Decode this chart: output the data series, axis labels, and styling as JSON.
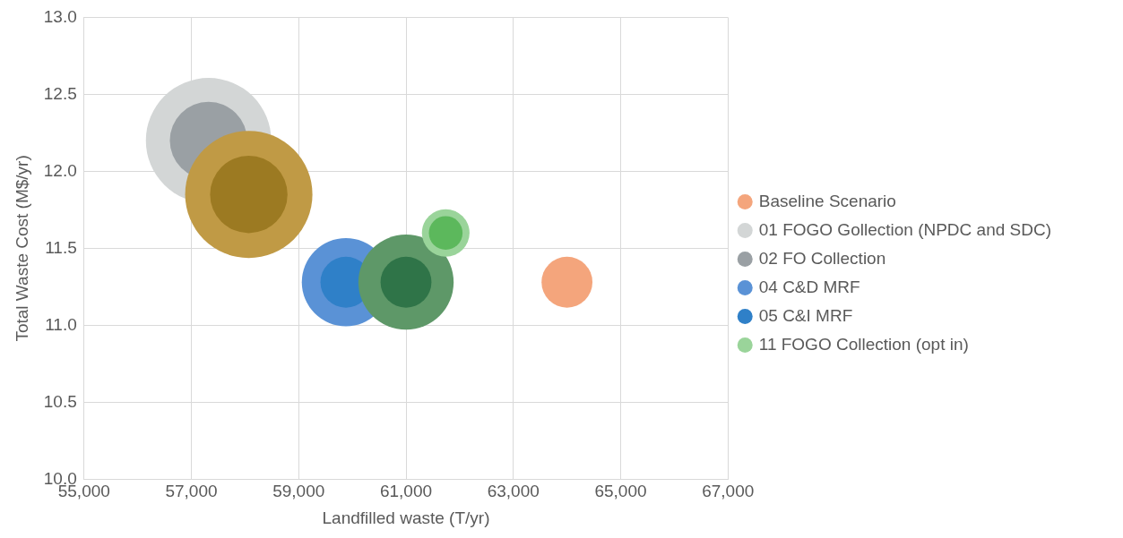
{
  "chart_data": {
    "type": "bubble",
    "xlabel": "Landfilled waste (T/yr)",
    "ylabel": "Total Waste Cost (M$/yr)",
    "xlim": [
      55000,
      67000
    ],
    "xticks": [
      {
        "value": 55000,
        "label": "55,000"
      },
      {
        "value": 57000,
        "label": "57,000"
      },
      {
        "value": 59000,
        "label": "59,000"
      },
      {
        "value": 61000,
        "label": "61,000"
      },
      {
        "value": 63000,
        "label": "63,000"
      },
      {
        "value": 65000,
        "label": "65,000"
      },
      {
        "value": 67000,
        "label": "67,000"
      }
    ],
    "ylim": [
      10.0,
      13.0
    ],
    "yticks": [
      {
        "value": 10,
        "label": "10.0"
      },
      {
        "value": 10.5,
        "label": "10.5"
      },
      {
        "value": 11,
        "label": "11.0"
      },
      {
        "value": 11.5,
        "label": "11.5"
      },
      {
        "value": 12,
        "label": "12.0"
      },
      {
        "value": 12.5,
        "label": "12.5"
      },
      {
        "value": 13,
        "label": "13.0"
      }
    ],
    "grid": true,
    "legend": "right",
    "series": [
      {
        "name": "Baseline Scenario",
        "color": "#f4a57c",
        "x": [
          64000
        ],
        "values": [
          11.28
        ],
        "sizes": [
          0.16
        ]
      },
      {
        "name": "01 FOGO Gollection (NPDC and SDC)",
        "color": "#d3d6d6",
        "x": [
          57320
        ],
        "values": [
          12.2
        ],
        "sizes": [
          0.97
        ]
      },
      {
        "name": "02 FO Collection",
        "color": "#9aa0a4",
        "x": [
          57320
        ],
        "values": [
          12.2
        ],
        "sizes": [
          0.37
        ]
      },
      {
        "color": "#c09a45",
        "x": [
          58070
        ],
        "values": [
          11.85
        ],
        "sizes": [
          1
        ]
      },
      {
        "color": "#9c7a22",
        "x": [
          58070
        ],
        "values": [
          11.85
        ],
        "sizes": [
          0.37
        ]
      },
      {
        "name": "04 C&D MRF",
        "color": "#5a92d6",
        "x": [
          59880
        ],
        "values": [
          11.28
        ],
        "sizes": [
          0.48
        ]
      },
      {
        "name": "05 C&I MRF",
        "color": "#2f80c8",
        "x": [
          59880
        ],
        "values": [
          11.28
        ],
        "sizes": [
          0.16
        ]
      },
      {
        "color": "#5e9868",
        "x": [
          61000
        ],
        "values": [
          11.28
        ],
        "sizes": [
          0.56
        ]
      },
      {
        "color": "#2f7448",
        "x": [
          61000
        ],
        "values": [
          11.28
        ],
        "sizes": [
          0.16
        ]
      },
      {
        "name": "11 FOGO Collection (opt in)",
        "color": "#9ad49a",
        "x": [
          61740
        ],
        "values": [
          11.6
        ],
        "sizes": [
          0.14
        ]
      },
      {
        "color": "#5cb85c",
        "x": [
          61740
        ],
        "values": [
          11.6
        ],
        "sizes": [
          0.07
        ]
      }
    ]
  }
}
